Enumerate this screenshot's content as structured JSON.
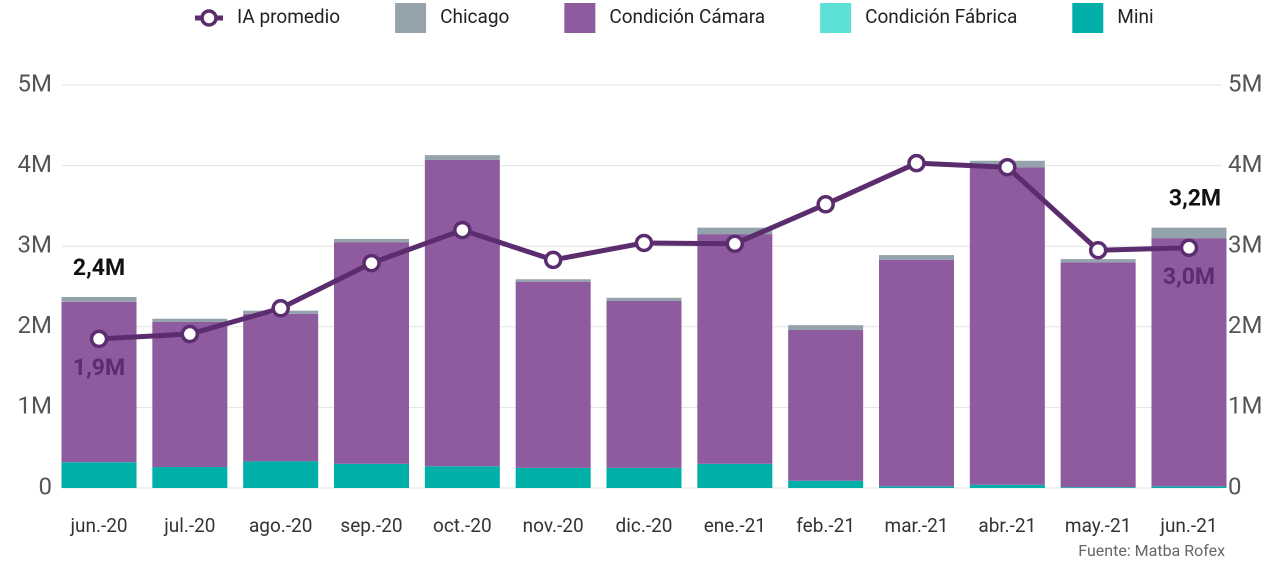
{
  "chart_data": {
    "type": "bar",
    "stacked": true,
    "categories": [
      "jun.-20",
      "jul.-20",
      "ago.-20",
      "sep.-20",
      "oct.-20",
      "nov.-20",
      "dic.-20",
      "ene.-21",
      "feb.-21",
      "mar.-21",
      "abr.-21",
      "may.-21",
      "jun.-21"
    ],
    "series": [
      {
        "name": "IA promedio",
        "type": "line",
        "color": "#5c2d6e",
        "values": [
          1850000,
          1910000,
          2230000,
          2790000,
          3200000,
          2830000,
          3040000,
          3030000,
          3520000,
          4030000,
          3980000,
          2950000,
          2980000
        ],
        "value_labels": [
          "1,9M",
          null,
          null,
          null,
          null,
          null,
          null,
          null,
          null,
          null,
          null,
          null,
          "3,0M"
        ]
      },
      {
        "name": "Chicago",
        "color": "#94a3ab",
        "values": [
          60000,
          40000,
          40000,
          40000,
          60000,
          30000,
          40000,
          80000,
          60000,
          60000,
          80000,
          40000,
          130000
        ]
      },
      {
        "name": "Condición Cámara",
        "color": "#8e5b9e",
        "values": [
          1990000,
          1800000,
          1830000,
          2750000,
          3800000,
          2310000,
          2070000,
          2850000,
          1870000,
          2810000,
          3940000,
          2790000,
          3080000
        ]
      },
      {
        "name": "Condición Fábrica",
        "color": "#5ce0d8",
        "values": [
          0,
          0,
          0,
          0,
          0,
          0,
          0,
          0,
          0,
          0,
          0,
          0,
          0
        ]
      },
      {
        "name": "Mini",
        "color": "#00b0a8",
        "values": [
          320000,
          260000,
          330000,
          300000,
          270000,
          250000,
          250000,
          300000,
          90000,
          20000,
          40000,
          10000,
          20000
        ]
      }
    ],
    "total_labels": [
      "2,4M",
      null,
      null,
      null,
      null,
      null,
      null,
      null,
      null,
      null,
      null,
      null,
      "3,2M"
    ],
    "ylim": [
      0,
      5000000
    ],
    "yticks": [
      0,
      {
        "value": 1000000,
        "label": "1M"
      },
      {
        "value": 2000000,
        "label": "2M"
      },
      {
        "value": 3000000,
        "label": "3M"
      },
      {
        "value": 4000000,
        "label": "4M"
      },
      {
        "value": 5000000,
        "label": "5M"
      }
    ],
    "grid": true,
    "source": "Fuente: Matba Rofex"
  }
}
